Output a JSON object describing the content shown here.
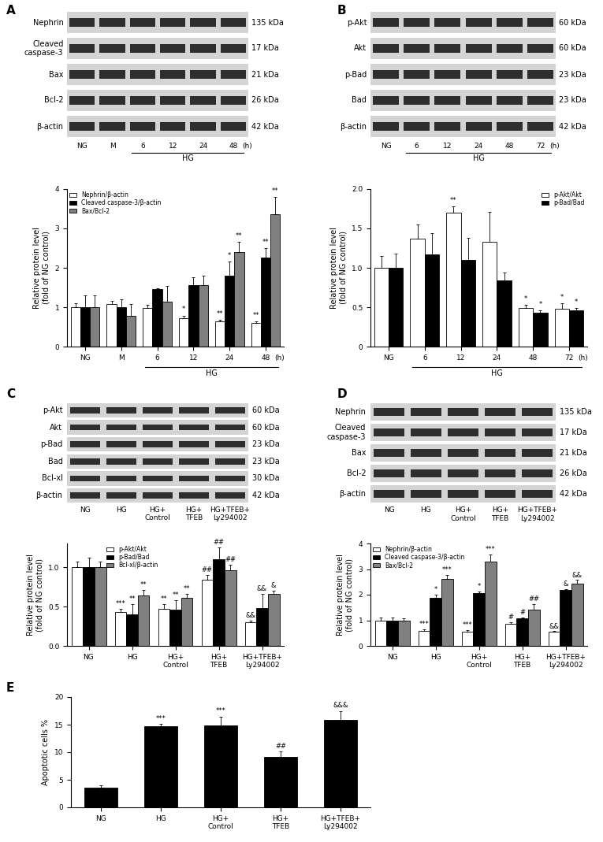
{
  "chart_data": [
    {
      "type": "bar",
      "title": "A",
      "blot": [
        {
          "label": "Nephrin",
          "size": "135 kDa"
        },
        {
          "label": "Cleaved\ncaspase-3",
          "size": "17 kDa"
        },
        {
          "label": "Bax",
          "size": "21 kDa"
        },
        {
          "label": "Bcl-2",
          "size": "26 kDa"
        },
        {
          "label": "β-actin",
          "size": "42 kDa"
        }
      ],
      "categories": [
        "NG",
        "M",
        "6",
        "12",
        "24",
        "48"
      ],
      "group_label": "HG",
      "group_categories": [
        "6",
        "12",
        "24",
        "48"
      ],
      "unit_label": "(h)",
      "y_label": "Relative protein level\n(fold of NG control)",
      "ylim": [
        0,
        4
      ],
      "yticks": [
        0,
        1,
        2,
        3,
        4
      ],
      "legend": "upper left",
      "series": [
        {
          "name": "Nephrin/β-actin",
          "color": "#ffffff",
          "values": [
            1.0,
            1.07,
            0.98,
            0.72,
            0.65,
            0.6
          ],
          "errors": [
            0.1,
            0.08,
            0.08,
            0.07,
            0.03,
            0.04
          ],
          "annotations": [
            null,
            null,
            null,
            "*",
            "**",
            "**"
          ]
        },
        {
          "name": "Cleaved caspase-3/β-actin",
          "color": "#000000",
          "values": [
            1.0,
            1.0,
            1.45,
            1.55,
            1.8,
            2.25
          ],
          "errors": [
            0.3,
            0.2,
            0.03,
            0.2,
            0.35,
            0.25
          ],
          "annotations": [
            null,
            null,
            null,
            null,
            "*",
            "**"
          ]
        },
        {
          "name": "Bax/Bcl-2",
          "color": "#808080",
          "values": [
            1.0,
            0.78,
            1.15,
            1.55,
            2.4,
            3.35
          ],
          "errors": [
            0.3,
            0.3,
            0.4,
            0.25,
            0.25,
            0.45
          ],
          "annotations": [
            null,
            null,
            null,
            null,
            "**",
            "**"
          ]
        }
      ]
    },
    {
      "type": "bar",
      "title": "B",
      "blot": [
        {
          "label": "p-Akt",
          "size": "60 kDa"
        },
        {
          "label": "Akt",
          "size": "60 kDa"
        },
        {
          "label": "p-Bad",
          "size": "23 kDa"
        },
        {
          "label": "Bad",
          "size": "23 kDa"
        },
        {
          "label": "β-actin",
          "size": "42 kDa"
        }
      ],
      "categories": [
        "NG",
        "6",
        "12",
        "24",
        "48",
        "72"
      ],
      "group_label": "HG",
      "group_categories": [
        "6",
        "12",
        "24",
        "48",
        "72"
      ],
      "unit_label": "(h)",
      "y_label": "Relative protein level\n(fold of NG control)",
      "ylim": [
        0,
        2
      ],
      "yticks": [
        0,
        0.5,
        {
          "value": 1,
          "label": "1.0"
        },
        1.5,
        {
          "value": 2,
          "label": "2.0"
        }
      ],
      "legend": "upper right",
      "series": [
        {
          "name": "p-Akt/Akt",
          "color": "#ffffff",
          "values": [
            1.0,
            1.37,
            1.7,
            1.33,
            0.49,
            0.48
          ],
          "errors": [
            0.15,
            0.18,
            0.08,
            0.38,
            0.04,
            0.07
          ],
          "annotations": [
            null,
            null,
            "**",
            null,
            "*",
            "*"
          ]
        },
        {
          "name": "p-Bad/Bad",
          "color": "#000000",
          "values": [
            1.0,
            1.17,
            1.1,
            0.84,
            0.43,
            0.46
          ],
          "errors": [
            0.18,
            0.27,
            0.28,
            0.1,
            0.03,
            0.03
          ],
          "annotations": [
            null,
            null,
            null,
            null,
            "*",
            "*"
          ]
        }
      ]
    },
    {
      "type": "bar",
      "title": "C",
      "blot": [
        {
          "label": "p-Akt",
          "size": "60 kDa"
        },
        {
          "label": "Akt",
          "size": "60 kDa"
        },
        {
          "label": "p-Bad",
          "size": "23 kDa"
        },
        {
          "label": "Bad",
          "size": "23 kDa"
        },
        {
          "label": "Bcl-xl",
          "size": "30 kDa"
        },
        {
          "label": "β-actin",
          "size": "42 kDa"
        }
      ],
      "categories": [
        "NG",
        "HG",
        "HG+\nControl",
        "HG+\nTFEB",
        "HG+TFEB+\nLy294002"
      ],
      "y_label": "Relative protein level\n(fold of NG control)",
      "ylim": [
        0,
        1.3
      ],
      "yticks": [
        {
          "value": 0,
          "label": "0.0"
        },
        0.5,
        {
          "value": 1,
          "label": "1.0"
        }
      ],
      "legend": "upper left",
      "series": [
        {
          "name": "p-Akt/Akt",
          "color": "#ffffff",
          "values": [
            1.0,
            0.43,
            0.47,
            0.84,
            0.3
          ],
          "errors": [
            0.07,
            0.04,
            0.06,
            0.06,
            0.02
          ],
          "annotations": [
            null,
            "***",
            "**",
            "##",
            "&&"
          ]
        },
        {
          "name": "p-Bad/Bad",
          "color": "#000000",
          "values": [
            1.0,
            0.4,
            0.46,
            1.1,
            0.48
          ],
          "errors": [
            0.12,
            0.13,
            0.12,
            0.15,
            0.18
          ],
          "annotations": [
            null,
            "**",
            "**",
            "##",
            "&&"
          ]
        },
        {
          "name": "Bcl-xl/β-actin",
          "color": "#808080",
          "values": [
            1.0,
            0.64,
            0.61,
            0.96,
            0.66
          ],
          "errors": [
            0.07,
            0.07,
            0.05,
            0.07,
            0.04
          ],
          "annotations": [
            null,
            "**",
            "**",
            "##",
            "&"
          ]
        }
      ]
    },
    {
      "type": "bar",
      "title": "D",
      "blot": [
        {
          "label": "Nephrin",
          "size": "135 kDa"
        },
        {
          "label": "Cleaved\ncaspase-3",
          "size": "17 kDa"
        },
        {
          "label": "Bax",
          "size": "21 kDa"
        },
        {
          "label": "Bcl-2",
          "size": "26 kDa"
        },
        {
          "label": "β-actin",
          "size": "42 kDa"
        }
      ],
      "categories": [
        "NG",
        "HG",
        "HG+\nControl",
        "HG+\nTFEB",
        "HG+TFEB+\nLy294002"
      ],
      "y_label": "Relative protein level\n(fold of NG control)",
      "ylim": [
        0,
        4
      ],
      "yticks": [
        0,
        1,
        2,
        3,
        4
      ],
      "legend": "upper left",
      "series": [
        {
          "name": "Nephrin/β-actin",
          "color": "#ffffff",
          "values": [
            1.0,
            0.6,
            0.56,
            0.86,
            0.54
          ],
          "errors": [
            0.1,
            0.04,
            0.07,
            0.06,
            0.03
          ],
          "annotations": [
            null,
            "***",
            "***",
            "#",
            "&&"
          ]
        },
        {
          "name": "Cleaved caspase-3/β-actin",
          "color": "#000000",
          "values": [
            1.0,
            1.88,
            2.05,
            1.07,
            2.18
          ],
          "errors": [
            0.1,
            0.12,
            0.08,
            0.03,
            0.04
          ],
          "annotations": [
            null,
            "*",
            "*",
            "#",
            "&"
          ]
        },
        {
          "name": "Bax/Bcl-2",
          "color": "#808080",
          "values": [
            1.0,
            2.62,
            3.28,
            1.43,
            2.42
          ],
          "errors": [
            0.08,
            0.15,
            0.3,
            0.2,
            0.15
          ],
          "annotations": [
            null,
            "***",
            "***",
            "##",
            "&&"
          ]
        }
      ]
    },
    {
      "type": "bar",
      "title": "E",
      "categories": [
        "NG",
        "HG",
        "HG+\nControl",
        "HG+\nTFEB",
        "HG+TFEB+\nLy294002"
      ],
      "y_label": "Apoptotic cells %",
      "ylim": [
        0,
        20
      ],
      "yticks": [
        0,
        5,
        10,
        15,
        20
      ],
      "color": "#000000",
      "values": [
        3.6,
        14.7,
        14.9,
        9.1,
        15.9
      ],
      "errors": [
        0.4,
        0.5,
        1.6,
        1.0,
        1.6
      ],
      "annotations": [
        null,
        "***",
        "***",
        "##",
        "&&&"
      ]
    }
  ]
}
